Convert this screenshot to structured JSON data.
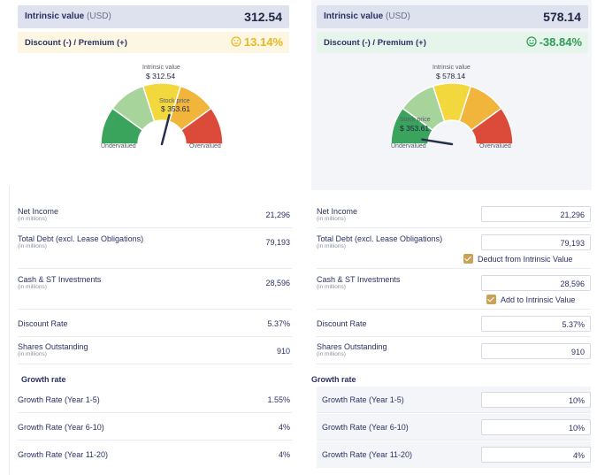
{
  "left": {
    "intrinsic": {
      "label": "Intrinsic value",
      "unit": "(USD)",
      "value": "312.54"
    },
    "discount": {
      "label": "Discount (-) / Premium (+)",
      "value": "13.14%",
      "status": "neutral"
    },
    "gauge": {
      "intrinsic_caption": "Intrinsic value",
      "intrinsic_value": "$ 312.54",
      "price_caption": "Stock price",
      "price_value": "$ 353.61",
      "left_label": "Undervalued",
      "right_label": "Overvalued",
      "needle_fraction": 0.58
    },
    "rows": [
      {
        "label": "Net Income",
        "sub": "(in millions)",
        "value": "21,296"
      },
      {
        "label": "Total Debt (excl. Lease Obligations)",
        "sub": "(in millions)",
        "value": "79,193"
      },
      {
        "label": "Cash & ST Investments",
        "sub": "(in millions)",
        "value": "28,596"
      },
      {
        "label": "Discount Rate",
        "sub": "",
        "value": "5.37%"
      },
      {
        "label": "Shares Outstanding",
        "sub": "(in millions)",
        "value": "910"
      }
    ],
    "growth_title": "Growth rate",
    "growth": [
      {
        "label": "Growth Rate (Year 1-5)",
        "value": "1.55%"
      },
      {
        "label": "Growth Rate (Year 6-10)",
        "value": "4%"
      },
      {
        "label": "Growth Rate (Year 11-20)",
        "value": "4%"
      }
    ]
  },
  "right": {
    "intrinsic": {
      "label": "Intrinsic value",
      "unit": "(USD)",
      "value": "578.14"
    },
    "discount": {
      "label": "Discount (-) / Premium (+)",
      "value": "-38.84%",
      "status": "positive"
    },
    "gauge": {
      "intrinsic_caption": "Intrinsic value",
      "intrinsic_value": "$ 578.14",
      "price_caption": "Stock price",
      "price_value": "$ 353.61",
      "left_label": "Undervalued",
      "right_label": "Overvalued",
      "needle_fraction": 0.05
    },
    "rows": [
      {
        "label": "Net Income",
        "sub": "(in millions)",
        "value": "21,296"
      },
      {
        "label": "Total Debt (excl. Lease Obligations)",
        "sub": "(in millions)",
        "value": "79,193",
        "checkbox": "Deduct from Intrinsic Value"
      },
      {
        "label": "Cash & ST Investments",
        "sub": "(in millions)",
        "value": "28,596",
        "checkbox": "Add to Intrinsic Value"
      },
      {
        "label": "Discount Rate",
        "sub": "",
        "value": "5.37%"
      },
      {
        "label": "Shares Outstanding",
        "sub": "(in millions)",
        "value": "910"
      }
    ],
    "growth_title": "Growth rate",
    "growth": [
      {
        "label": "Growth Rate (Year 1-5)",
        "value": "10%"
      },
      {
        "label": "Growth Rate (Year 6-10)",
        "value": "10%"
      },
      {
        "label": "Growth Rate (Year 11-20)",
        "value": "4%"
      }
    ]
  },
  "colors": {
    "gauge_segments": [
      "#3aa35c",
      "#a7d49a",
      "#f3d83d",
      "#f0b53a",
      "#dc4b3a"
    ],
    "needle": "#26304a",
    "discount_neutral": "#e9b61f",
    "discount_positive": "#2f9b55",
    "checkbox": "#c8a256"
  }
}
